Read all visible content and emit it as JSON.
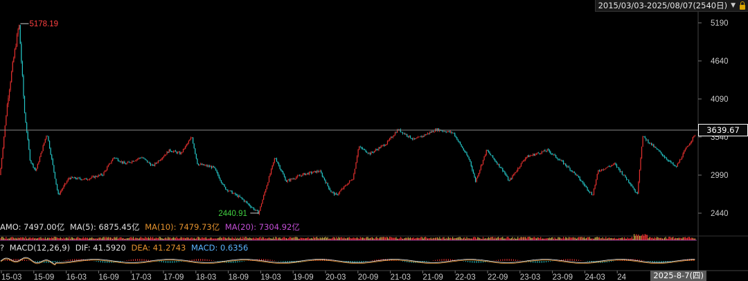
{
  "header": {
    "range_label": "2015/03/03-2025/08/07(2540日)",
    "dropdown_glyph": "▼"
  },
  "price_axis": {
    "ticks": [
      "5190",
      "4640",
      "4090",
      "3540",
      "2990",
      "2440"
    ]
  },
  "current_price": "3639.67",
  "annotations": {
    "high": "5178.19",
    "low": "2440.91"
  },
  "amount_row": {
    "amo": "AMO: 7497.00亿",
    "ma5": "MA(5): 6875.45亿",
    "ma10": "MA(10): 7479.73亿",
    "ma20": "MA(20): 7304.92亿"
  },
  "macd_row": {
    "help": "?",
    "name": "MACD(12,26,9)",
    "dif": "DIF: 41.5920",
    "dea": "DEA: 41.2743",
    "macd": "MACD: 0.6356"
  },
  "time_axis": {
    "ticks": [
      "15-03",
      "15-09",
      "16-03",
      "16-09",
      "17-03",
      "17-09",
      "18-03",
      "18-09",
      "19-03",
      "19-09",
      "20-03",
      "20-09",
      "21-03",
      "21-09",
      "22-03",
      "22-09",
      "23-03",
      "23-09",
      "24-03",
      "24"
    ],
    "current_date": "2025-8-7(四)"
  },
  "colors": {
    "up": "#e8312f",
    "down": "#25c7c8",
    "high_label": "#ff4040",
    "low_label": "#40d040",
    "ma10": "#e6932e",
    "ma20": "#c34fd6",
    "macd_label": "#5ab4ff",
    "grid": "#2a2a2a"
  },
  "chart_data": {
    "type": "candlestick",
    "x_range": [
      "2015-03-03",
      "2025-08-07"
    ],
    "ylim": [
      2440,
      5190
    ],
    "y_ticks": [
      5190,
      4640,
      4090,
      3540,
      2990,
      2440
    ],
    "close_path": [
      [
        "2015-03",
        3300
      ],
      [
        "2015-04",
        4100
      ],
      [
        "2015-05",
        4650
      ],
      [
        "2015-06",
        5178.19
      ],
      [
        "2015-07",
        3900
      ],
      [
        "2015-08",
        3200
      ],
      [
        "2015-09",
        3050
      ],
      [
        "2015-11",
        3600
      ],
      [
        "2016-01",
        2700
      ],
      [
        "2016-03",
        2950
      ],
      [
        "2016-06",
        2930
      ],
      [
        "2016-09",
        3000
      ],
      [
        "2016-11",
        3250
      ],
      [
        "2017-01",
        3150
      ],
      [
        "2017-04",
        3250
      ],
      [
        "2017-06",
        3120
      ],
      [
        "2017-09",
        3350
      ],
      [
        "2017-11",
        3300
      ],
      [
        "2018-01",
        3540
      ],
      [
        "2018-02",
        3150
      ],
      [
        "2018-05",
        3100
      ],
      [
        "2018-07",
        2800
      ],
      [
        "2018-10",
        2650
      ],
      [
        "2019-01",
        2440.91
      ],
      [
        "2019-04",
        3250
      ],
      [
        "2019-06",
        2900
      ],
      [
        "2019-09",
        3000
      ],
      [
        "2019-12",
        3050
      ],
      [
        "2020-02",
        2750
      ],
      [
        "2020-03",
        2700
      ],
      [
        "2020-06",
        2950
      ],
      [
        "2020-07",
        3400
      ],
      [
        "2020-09",
        3300
      ],
      [
        "2020-12",
        3450
      ],
      [
        "2021-02",
        3650
      ],
      [
        "2021-05",
        3500
      ],
      [
        "2021-09",
        3650
      ],
      [
        "2021-12",
        3600
      ],
      [
        "2022-03",
        3200
      ],
      [
        "2022-04",
        2900
      ],
      [
        "2022-06",
        3350
      ],
      [
        "2022-09",
        3050
      ],
      [
        "2022-10",
        2900
      ],
      [
        "2023-01",
        3250
      ],
      [
        "2023-05",
        3350
      ],
      [
        "2023-08",
        3150
      ],
      [
        "2023-10",
        3000
      ],
      [
        "2024-01",
        2700
      ],
      [
        "2024-02",
        3050
      ],
      [
        "2024-05",
        3150
      ],
      [
        "2024-08",
        2850
      ],
      [
        "2024-09",
        2700
      ],
      [
        "2024-10",
        3550
      ],
      [
        "2024-12",
        3400
      ],
      [
        "2025-04",
        3100
      ],
      [
        "2025-06",
        3400
      ],
      [
        "2025-08",
        3639.67
      ]
    ],
    "last_close": 3639.67,
    "high": {
      "value": 5178.19,
      "date": "2015-06"
    },
    "low": {
      "value": 2440.91,
      "date": "2019-01"
    },
    "indicators": {
      "AMO": "7497.00亿",
      "MA5": "6875.45亿",
      "MA10": "7479.73亿",
      "MA20": "7304.92亿",
      "DIF": 41.592,
      "DEA": 41.2743,
      "MACD": 0.6356
    }
  }
}
